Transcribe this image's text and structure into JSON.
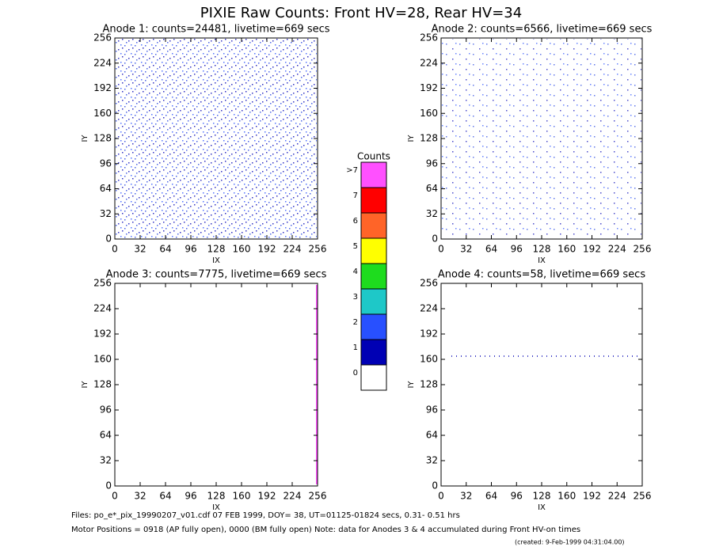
{
  "title": "PIXIE Raw Counts:  Front HV=28, Rear HV=34",
  "chart_data": [
    {
      "type": "heatmap",
      "title": "Anode 1: counts=24481, livetime=669 secs",
      "xlabel": "IX",
      "ylabel": "IY",
      "xlim": [
        0,
        256
      ],
      "ylim": [
        0,
        256
      ],
      "xticks": [
        0,
        32,
        64,
        96,
        128,
        160,
        192,
        224,
        256
      ],
      "yticks": [
        0,
        32,
        64,
        96,
        128,
        160,
        192,
        224,
        256
      ]
    },
    {
      "type": "heatmap",
      "title": "Anode 2: counts=6566, livetime=669 secs",
      "xlabel": "IX",
      "ylabel": "IY",
      "xlim": [
        0,
        256
      ],
      "ylim": [
        0,
        256
      ],
      "xticks": [
        0,
        32,
        64,
        96,
        128,
        160,
        192,
        224,
        256
      ],
      "yticks": [
        0,
        32,
        64,
        96,
        128,
        160,
        192,
        224,
        256
      ]
    },
    {
      "type": "heatmap",
      "title": "Anode 3: counts=7775, livetime=669 secs",
      "xlabel": "IX",
      "ylabel": "IY",
      "xlim": [
        0,
        256
      ],
      "ylim": [
        0,
        256
      ],
      "xticks": [
        0,
        32,
        64,
        96,
        128,
        160,
        192,
        224,
        256
      ],
      "yticks": [
        0,
        32,
        64,
        96,
        128,
        160,
        192,
        224,
        256
      ]
    },
    {
      "type": "heatmap",
      "title": "Anode 4: counts=58, livetime=669 secs",
      "xlabel": "IX",
      "ylabel": "IY",
      "xlim": [
        0,
        256
      ],
      "ylim": [
        0,
        256
      ],
      "xticks": [
        0,
        32,
        64,
        96,
        128,
        160,
        192,
        224,
        256
      ],
      "yticks": [
        0,
        32,
        64,
        96,
        128,
        160,
        192,
        224,
        256
      ]
    }
  ],
  "colorbar": {
    "title": "Counts",
    "levels": [
      {
        "label": "0",
        "color": "#ffffff"
      },
      {
        "label": "1",
        "color": "#0000b4"
      },
      {
        "label": "2",
        "color": "#2850ff"
      },
      {
        "label": "3",
        "color": "#1ec8c8"
      },
      {
        "label": "4",
        "color": "#1edc1e"
      },
      {
        "label": "5",
        "color": "#ffff00"
      },
      {
        "label": "6",
        "color": "#ff6428"
      },
      {
        "label": "7",
        "color": "#ff0000"
      },
      {
        "label": ">7",
        "color": "#ff50ff"
      }
    ]
  },
  "footer": [
    "Files: po_e*_pix_19990207_v01.cdf    07 FEB 1999, DOY= 38, UT=01125-01824 secs,  0.31- 0.51 hrs",
    "Motor Positions = 0918 (AP fully open), 0000 (BM fully open)    Note: data for Anodes 3 & 4 accumulated during Front HV-on times",
    "(created:  9-Feb-1999 04:31:04.00)"
  ]
}
